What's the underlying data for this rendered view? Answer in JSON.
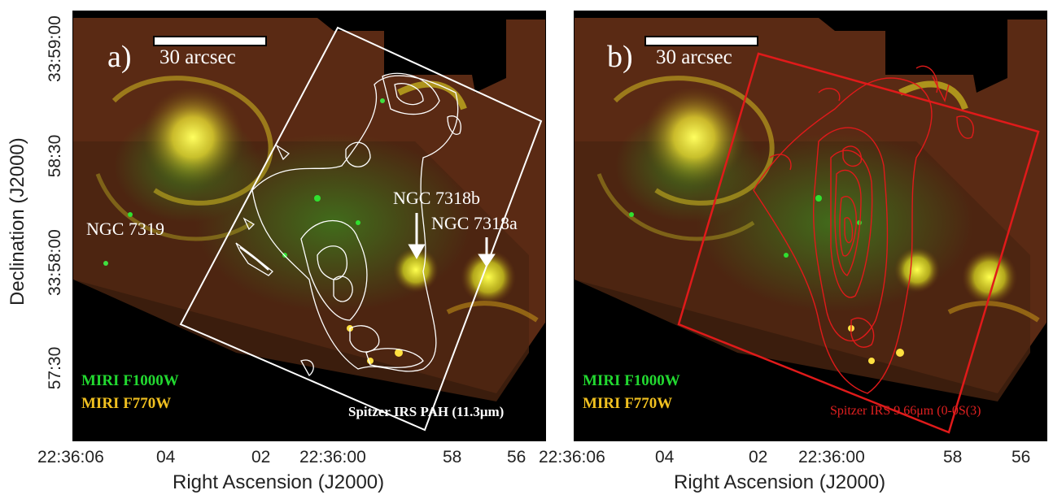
{
  "panel_a": {
    "label": "a)",
    "scalebar": "30 arcsec",
    "galaxy_labels": [
      "NGC 7319",
      "NGC 7318b",
      "NGC 7318a"
    ],
    "legend": [
      "MIRI  F1000W",
      "MIRI F770W"
    ],
    "contour_label": "Spitzer IRS PAH (11.3μm)",
    "contour_color": "#ffffff"
  },
  "panel_b": {
    "label": "b)",
    "scalebar": "30 arcsec",
    "legend": [
      "MIRI  F1000W",
      "MIRI F770W"
    ],
    "contour_label": "Spitzer IRS 9.66μm (0-0S(3)",
    "contour_color": "#e01a1a"
  },
  "axes": {
    "ylabel": "Declination (J2000)",
    "xlabel": "Right Ascension (J2000)",
    "yticks": [
      "33:59:00",
      "58:30",
      "33:58:00",
      "57:30"
    ],
    "xticks_a": [
      "22:36:06",
      "04",
      "02",
      "22:36:00",
      "58",
      "56"
    ],
    "xticks_b": [
      "22:36:06",
      "04",
      "02",
      "22:36:00",
      "58",
      "56"
    ]
  },
  "colors": {
    "green_channel": "#22d830",
    "yellow_channel": "#f0c020",
    "contour_b": "#e01a1a"
  }
}
